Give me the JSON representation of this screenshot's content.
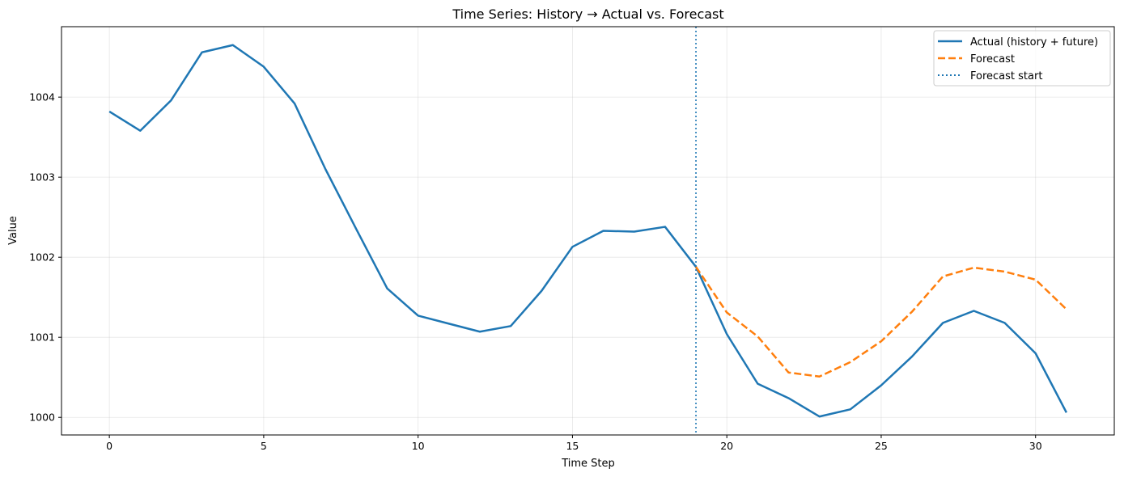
{
  "chart_data": {
    "type": "line",
    "title": "Time Series: History → Actual vs. Forecast",
    "xlabel": "Time Step",
    "ylabel": "Value",
    "xlim": [
      -1.55,
      32.55
    ],
    "ylim": [
      999.78,
      1004.88
    ],
    "xticks": [
      0,
      5,
      10,
      15,
      20,
      25,
      30
    ],
    "yticks": [
      1000,
      1001,
      1002,
      1003,
      1004
    ],
    "grid": true,
    "legend_position": "top-right",
    "series": [
      {
        "name": "Actual (history + future)",
        "color": "#1f77b4",
        "style": "solid",
        "x": [
          0,
          1,
          2,
          3,
          4,
          5,
          6,
          7,
          8,
          9,
          10,
          11,
          12,
          13,
          14,
          15,
          16,
          17,
          18,
          19,
          20,
          21,
          22,
          23,
          24,
          25,
          26,
          27,
          28,
          29,
          30,
          31
        ],
        "y": [
          1003.82,
          1003.58,
          1003.96,
          1004.56,
          1004.65,
          1004.38,
          1003.92,
          1003.1,
          1002.35,
          1001.61,
          1001.27,
          1001.17,
          1001.07,
          1001.14,
          1001.58,
          1002.13,
          1002.33,
          1002.32,
          1002.38,
          1001.88,
          1001.04,
          1000.42,
          1000.24,
          1000.01,
          1000.1,
          1000.4,
          1000.76,
          1001.18,
          1001.33,
          1001.18,
          1000.8,
          1000.06
        ]
      },
      {
        "name": "Forecast",
        "color": "#ff7f0e",
        "style": "dashed",
        "x": [
          19,
          20,
          21,
          22,
          23,
          24,
          25,
          26,
          27,
          28,
          29,
          30,
          31
        ],
        "y": [
          1001.88,
          1001.31,
          1001.01,
          1000.56,
          1000.51,
          1000.69,
          1000.95,
          1001.32,
          1001.76,
          1001.87,
          1001.82,
          1001.72,
          1001.35
        ]
      }
    ],
    "vline": {
      "name": "Forecast start",
      "x": 19,
      "color": "#1f77b4",
      "style": "dotted"
    }
  }
}
